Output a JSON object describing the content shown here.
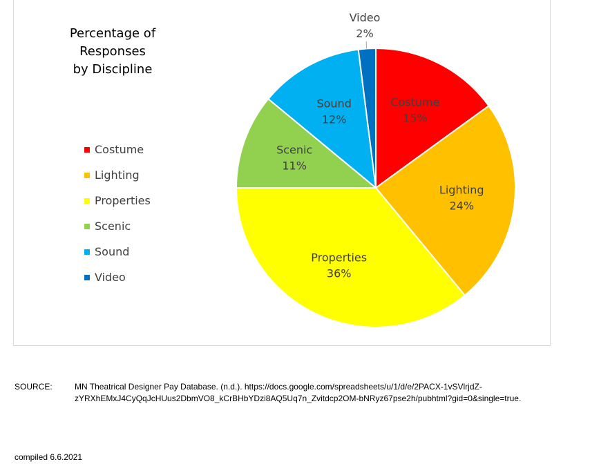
{
  "chart_data": {
    "type": "pie",
    "title_line1": "Percentage of Responses",
    "title_line2": "by Discipline",
    "legend_position": "left",
    "slices": [
      {
        "name": "Costume",
        "value": 15,
        "label": "15%",
        "color": "#ff0000"
      },
      {
        "name": "Lighting",
        "value": 24,
        "label": "24%",
        "color": "#ffc000"
      },
      {
        "name": "Properties",
        "value": 36,
        "label": "36%",
        "color": "#ffff00"
      },
      {
        "name": "Scenic",
        "value": 11,
        "label": "11%",
        "color": "#92d050"
      },
      {
        "name": "Sound",
        "value": 12,
        "label": "12%",
        "color": "#00b0f0"
      },
      {
        "name": "Video",
        "value": 2,
        "label": "2%",
        "color": "#0070c0"
      }
    ]
  },
  "source": {
    "label": "SOURCE:",
    "line1": "MN Theatrical Designer Pay Database. (n.d.). https://docs.google.com/spreadsheets/u/1/d/e/2PACX-1vSVlrjdZ-",
    "line2": "zYRXhEMxJ4CyQqJcHUus2DbmVO8_kCrBHbYDzi8AQ5Uq7n_Zvitdcp2OM-bNRyz67pse2h/pubhtml?gid=0&single=true."
  },
  "compiled": "compiled 6.6.2021"
}
